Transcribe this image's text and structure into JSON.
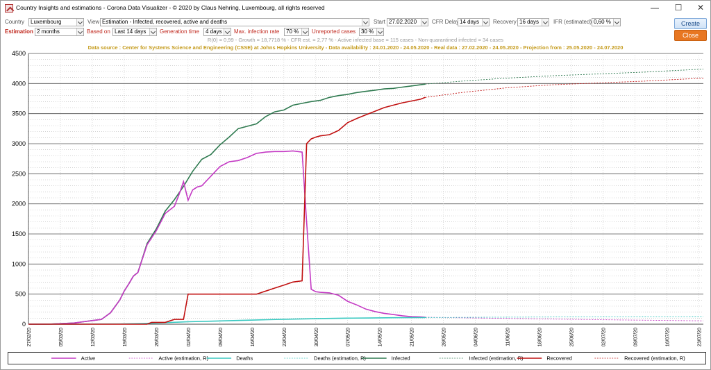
{
  "window": {
    "title": "Country Insights and estimations - Corona Data Visualizer - © 2020 by Claus Nehring, Luxembourg, all rights reserved",
    "minimize": "—",
    "maximize": "☐",
    "close": "✕"
  },
  "controls": {
    "country_label": "Country",
    "country_value": "Luxembourg",
    "view_label": "View",
    "view_value": "Estimation - Infected, recovered, active and deaths",
    "start_label": "Start",
    "start_value": "27.02.2020",
    "cfr_label": "CFR Delay",
    "cfr_value": "14 days",
    "recovery_label": "Recovery",
    "recovery_value": "16 days",
    "ifr_label": "IFR (estimated)",
    "ifr_value": "0,60 %",
    "estimation_label": "Estimation",
    "estimation_value": "2 months",
    "based_label": "Based on",
    "based_value": "Last 14 days",
    "gen_label": "Generation time",
    "gen_value": "4 days",
    "maxinf_label": "Max. infection rate",
    "maxinf_value": "70 %",
    "unrep_label": "Unreported cases",
    "unrep_value": "30 %",
    "create_label": "Create",
    "close_label": "Close"
  },
  "stats_line": "R(0) = 0,99 - Growth = 18,7718 % - CFR est. = 2,77 % - Active infected base = 115 cases - Non-quarantined infected = 34 cases",
  "source_line": "Data source : Center for Systems Science and Engineering (CSSE) at Johns Hopkins University  -  Data availability : 24.01.2020 - 24.05.2020  -  Real data : 27.02.2020 - 24.05.2020 - Projection from : 25.05.2020 - 24.07.2020",
  "chart_data": {
    "type": "line",
    "ylim": [
      0,
      4500
    ],
    "yticks": [
      "0",
      "500",
      "1000",
      "1500",
      "2000",
      "2500",
      "3000",
      "3500",
      "4000",
      "4500"
    ],
    "xlabels": [
      "27/02/20",
      "05/03/20",
      "12/03/20",
      "19/03/20",
      "26/03/20",
      "02/04/20",
      "09/04/20",
      "16/04/20",
      "23/04/20",
      "30/04/20",
      "07/05/20",
      "14/05/20",
      "21/05/20",
      "28/05/20",
      "04/06/20",
      "11/06/20",
      "18/06/20",
      "25/06/20",
      "02/07/20",
      "09/07/20",
      "16/07/20",
      "23/07/20"
    ],
    "total_days": 148,
    "real_end_day": 87,
    "colors": {
      "active": "#c43ac4",
      "deaths": "#38c8c0",
      "infected": "#2f7a50",
      "recovered": "#c01010"
    },
    "series": [
      {
        "name": "Infected",
        "key": "infected",
        "x": [
          0,
          5,
          10,
          12,
          14,
          16,
          18,
          20,
          21,
          22,
          23,
          24,
          26,
          28,
          30,
          32,
          34,
          36,
          38,
          40,
          42,
          44,
          46,
          48,
          50,
          52,
          54,
          56,
          58,
          60,
          62,
          64,
          66,
          68,
          70,
          72,
          74,
          76,
          78,
          80,
          82,
          84,
          86,
          87
        ],
        "values": [
          0,
          2,
          20,
          40,
          60,
          80,
          190,
          400,
          550,
          670,
          800,
          860,
          1340,
          1580,
          1880,
          2070,
          2290,
          2540,
          2740,
          2820,
          2980,
          3110,
          3250,
          3290,
          3330,
          3450,
          3530,
          3560,
          3640,
          3670,
          3700,
          3720,
          3770,
          3800,
          3820,
          3850,
          3870,
          3890,
          3910,
          3920,
          3940,
          3960,
          3980,
          3990
        ]
      },
      {
        "name": "Infected (estimation, R)",
        "key": "infected",
        "dashed": true,
        "x": [
          87,
          95,
          105,
          115,
          125,
          135,
          148
        ],
        "values": [
          3990,
          4040,
          4090,
          4130,
          4160,
          4190,
          4240
        ]
      },
      {
        "name": "Active",
        "key": "active",
        "x": [
          0,
          5,
          10,
          12,
          14,
          16,
          18,
          20,
          21,
          22,
          23,
          24,
          26,
          28,
          30,
          32,
          33,
          34,
          35,
          36,
          37,
          38,
          40,
          42,
          44,
          46,
          48,
          50,
          52,
          54,
          56,
          58,
          60,
          61,
          62,
          63,
          64,
          66,
          68,
          70,
          72,
          74,
          76,
          78,
          80,
          82,
          84,
          86,
          87
        ],
        "values": [
          0,
          2,
          20,
          40,
          60,
          80,
          190,
          400,
          550,
          670,
          800,
          860,
          1320,
          1550,
          1840,
          1960,
          2150,
          2370,
          2060,
          2230,
          2280,
          2300,
          2460,
          2620,
          2700,
          2720,
          2770,
          2840,
          2860,
          2870,
          2870,
          2880,
          2860,
          1700,
          580,
          540,
          530,
          520,
          480,
          380,
          320,
          250,
          210,
          180,
          160,
          140,
          125,
          120,
          115
        ]
      },
      {
        "name": "Active (estimation, R)",
        "key": "active",
        "dashed": true,
        "x": [
          87,
          100,
          115,
          130,
          148
        ],
        "values": [
          115,
          100,
          85,
          70,
          55
        ]
      },
      {
        "name": "Deaths",
        "key": "deaths",
        "x": [
          0,
          10,
          20,
          25,
          30,
          35,
          40,
          45,
          50,
          55,
          60,
          65,
          70,
          75,
          80,
          87
        ],
        "values": [
          0,
          1,
          4,
          10,
          25,
          40,
          50,
          60,
          70,
          80,
          88,
          95,
          100,
          103,
          107,
          110
        ]
      },
      {
        "name": "Deaths (estimation, R)",
        "key": "deaths",
        "dashed": true,
        "x": [
          87,
          100,
          115,
          130,
          148
        ],
        "values": [
          110,
          115,
          120,
          123,
          126
        ]
      },
      {
        "name": "Recovered",
        "key": "recovered",
        "x": [
          0,
          26,
          27,
          30,
          32,
          33,
          34,
          35,
          36,
          40,
          45,
          50,
          54,
          56,
          58,
          60,
          61,
          62,
          63,
          64,
          66,
          68,
          70,
          72,
          74,
          76,
          78,
          80,
          82,
          84,
          86,
          87
        ],
        "values": [
          0,
          0,
          30,
          30,
          80,
          80,
          80,
          500,
          500,
          500,
          500,
          500,
          600,
          650,
          700,
          720,
          3000,
          3080,
          3110,
          3130,
          3150,
          3220,
          3350,
          3420,
          3480,
          3540,
          3600,
          3640,
          3680,
          3710,
          3740,
          3770
        ]
      },
      {
        "name": "Recovered (estimation, R)",
        "key": "recovered",
        "dashed": true,
        "x": [
          87,
          95,
          105,
          115,
          125,
          135,
          148
        ],
        "values": [
          3770,
          3850,
          3930,
          3980,
          4010,
          4040,
          4090
        ]
      }
    ],
    "legend": [
      "Active",
      "Active (estimation, R)",
      "Deaths",
      "Deaths (estimation, R)",
      "Infected",
      "Infected (estimation, R)",
      "Recovered",
      "Recovered (estimation, R)"
    ]
  }
}
